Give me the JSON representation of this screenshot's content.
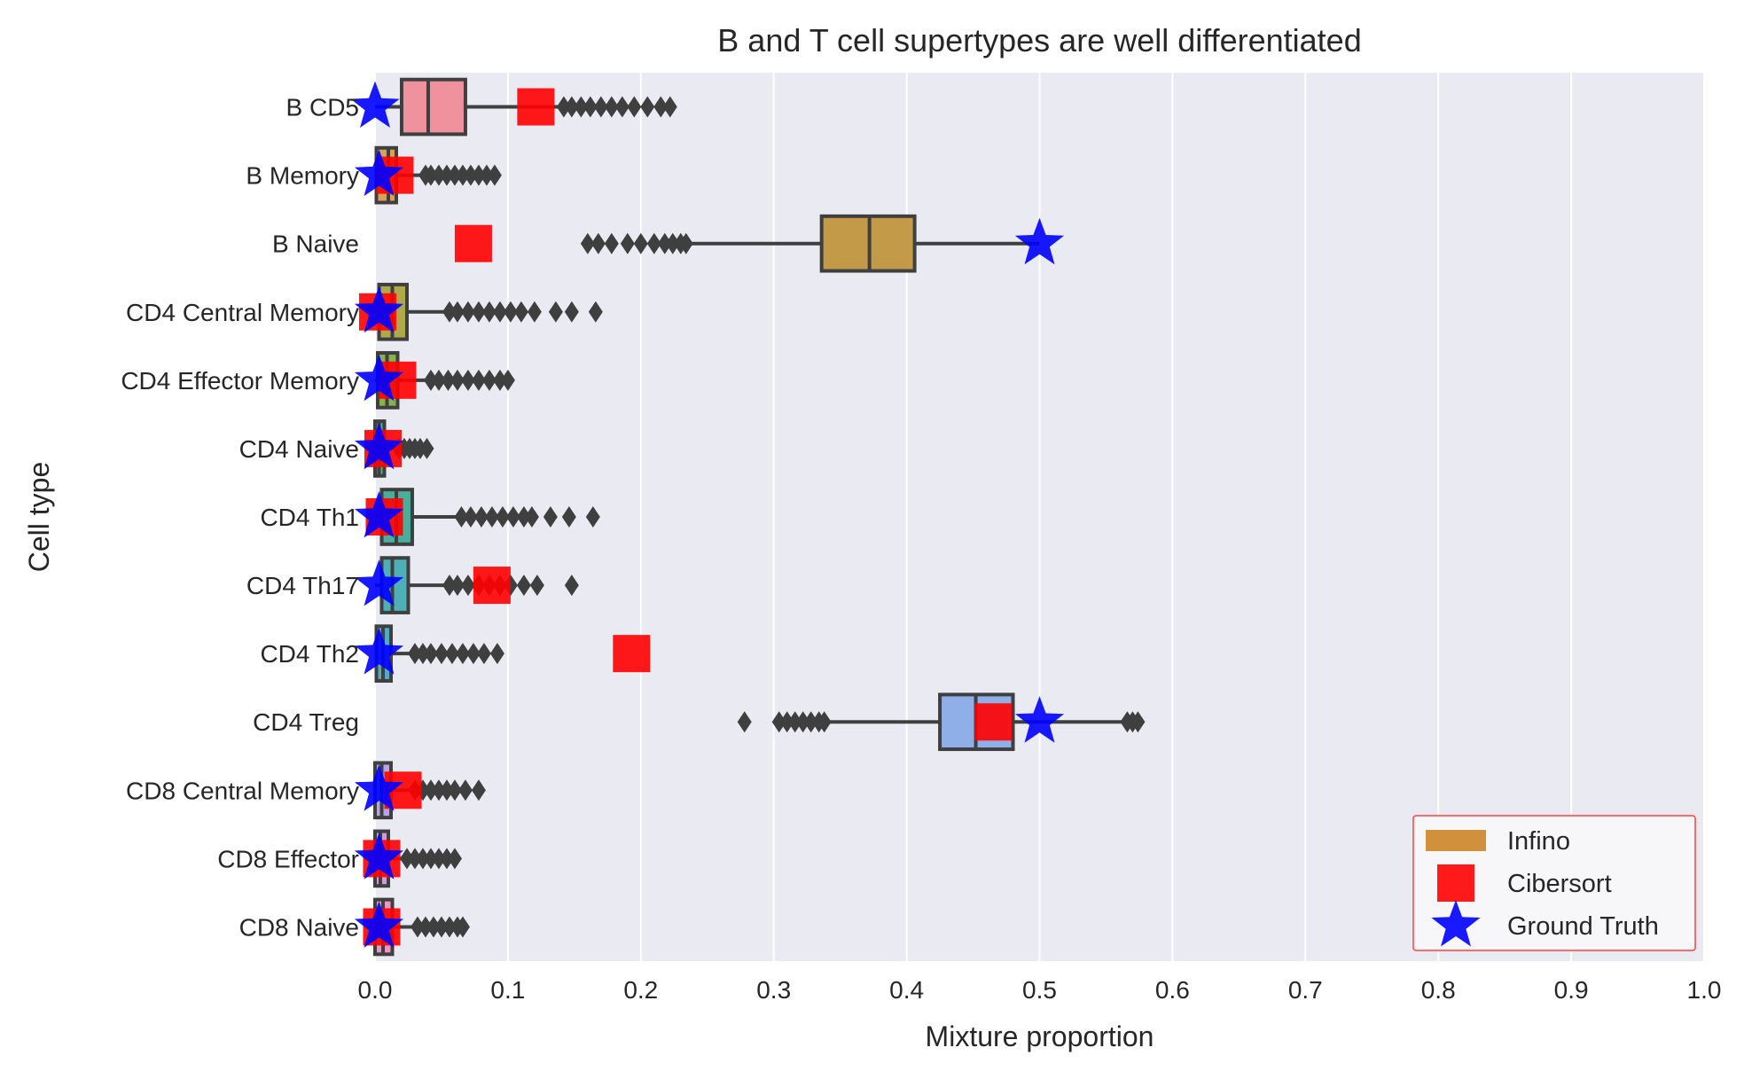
{
  "chart_data": {
    "type": "boxplot",
    "title": "B and T cell supertypes are well differentiated",
    "xlabel": "Mixture proportion",
    "ylabel": "Cell type",
    "xlim": [
      0.0,
      1.0
    ],
    "xticks": [
      "0.0",
      "0.1",
      "0.2",
      "0.3",
      "0.4",
      "0.5",
      "0.6",
      "0.7",
      "0.8",
      "0.9",
      "1.0"
    ],
    "grid": true,
    "legend_position": "bottom-right",
    "legend": [
      {
        "label": "Infino",
        "marker": "patch",
        "color": "#d1913c"
      },
      {
        "label": "Cibersort",
        "marker": "square",
        "color": "#ff0000"
      },
      {
        "label": "Ground Truth",
        "marker": "star",
        "color": "#0000ff"
      }
    ],
    "categories": [
      "B CD5",
      "B Memory",
      "B Naive",
      "CD4 Central Memory",
      "CD4 Effector Memory",
      "CD4 Naive",
      "CD4 Th1",
      "CD4 Th17",
      "CD4 Th2",
      "CD4 Treg",
      "CD8 Central Memory",
      "CD8 Effector",
      "CD8 Naive"
    ],
    "colors": {
      "background": "#eaeaf2",
      "grid": "#ffffff",
      "box_edge": "#3f3f3f",
      "cibersort": "#ff0000",
      "ground_truth": "#0000ff"
    },
    "series": [
      {
        "name": "Infino",
        "boxes": [
          {
            "color": "#f0929e",
            "q1": 0.02,
            "median": 0.04,
            "q3": 0.068,
            "whislo": 0.0,
            "whishi": 0.138,
            "fliers": [
              0.142,
              0.148,
              0.155,
              0.162,
              0.17,
              0.178,
              0.186,
              0.195,
              0.205,
              0.215,
              0.222
            ]
          },
          {
            "color": "#d9a257",
            "q1": 0.001,
            "median": 0.01,
            "q3": 0.016,
            "whislo": 0.0,
            "whishi": 0.036,
            "fliers": [
              0.038,
              0.042,
              0.048,
              0.054,
              0.06,
              0.066,
              0.072,
              0.078,
              0.084,
              0.09
            ]
          },
          {
            "color": "#c39a47",
            "q1": 0.336,
            "median": 0.372,
            "q3": 0.406,
            "whislo": 0.236,
            "whishi": 0.5,
            "fliers": [
              0.16,
              0.168,
              0.178,
              0.19,
              0.2,
              0.21,
              0.218,
              0.224,
              0.23,
              0.234
            ]
          },
          {
            "color": "#aeaa4a",
            "q1": 0.003,
            "median": 0.013,
            "q3": 0.024,
            "whislo": 0.0,
            "whishi": 0.054,
            "fliers": [
              0.056,
              0.062,
              0.07,
              0.078,
              0.086,
              0.094,
              0.102,
              0.11,
              0.12,
              0.136,
              0.148,
              0.166
            ]
          },
          {
            "color": "#87b14a",
            "q1": 0.002,
            "median": 0.009,
            "q3": 0.017,
            "whislo": 0.0,
            "whishi": 0.04,
            "fliers": [
              0.042,
              0.048,
              0.055,
              0.062,
              0.07,
              0.078,
              0.086,
              0.094,
              0.1
            ]
          },
          {
            "color": "#4cb273",
            "q1": 0.0,
            "median": 0.003,
            "q3": 0.007,
            "whislo": 0.0,
            "whishi": 0.016,
            "fliers": [
              0.018,
              0.022,
              0.026,
              0.03,
              0.034,
              0.039
            ]
          },
          {
            "color": "#4bae9b",
            "q1": 0.005,
            "median": 0.016,
            "q3": 0.028,
            "whislo": 0.0,
            "whishi": 0.062,
            "fliers": [
              0.065,
              0.072,
              0.08,
              0.088,
              0.096,
              0.104,
              0.112,
              0.118,
              0.132,
              0.146,
              0.164
            ]
          },
          {
            "color": "#4db0b6",
            "q1": 0.005,
            "median": 0.013,
            "q3": 0.025,
            "whislo": 0.0,
            "whishi": 0.054,
            "fliers": [
              0.056,
              0.062,
              0.07,
              0.078,
              0.086,
              0.094,
              0.102,
              0.112,
              0.122,
              0.148
            ]
          },
          {
            "color": "#54a9c9",
            "q1": 0.001,
            "median": 0.006,
            "q3": 0.012,
            "whislo": 0.0,
            "whishi": 0.028,
            "fliers": [
              0.03,
              0.036,
              0.042,
              0.05,
              0.058,
              0.066,
              0.074,
              0.082,
              0.092
            ]
          },
          {
            "color": "#8fafe9",
            "q1": 0.425,
            "median": 0.452,
            "q3": 0.48,
            "whislo": 0.342,
            "whishi": 0.562,
            "fliers": [
              0.278,
              0.304,
              0.31,
              0.316,
              0.322,
              0.328,
              0.334,
              0.338,
              0.566,
              0.57,
              0.574
            ]
          },
          {
            "color": "#b7a3e6",
            "q1": 0.0,
            "median": 0.005,
            "q3": 0.012,
            "whislo": 0.0,
            "whishi": 0.028,
            "fliers": [
              0.03,
              0.036,
              0.042,
              0.048,
              0.054,
              0.06,
              0.068,
              0.078
            ]
          },
          {
            "color": "#d896e2",
            "q1": 0.0,
            "median": 0.004,
            "q3": 0.01,
            "whislo": 0.0,
            "whishi": 0.022,
            "fliers": [
              0.024,
              0.03,
              0.036,
              0.042,
              0.048,
              0.054,
              0.06
            ]
          },
          {
            "color": "#ec95c4",
            "q1": 0.0,
            "median": 0.006,
            "q3": 0.013,
            "whislo": 0.0,
            "whishi": 0.03,
            "fliers": [
              0.032,
              0.038,
              0.044,
              0.05,
              0.056,
              0.062,
              0.066
            ]
          }
        ]
      },
      {
        "name": "Cibersort",
        "values": [
          0.121,
          0.015,
          0.074,
          0.002,
          0.017,
          0.006,
          0.007,
          0.088,
          0.193,
          0.465,
          0.021,
          0.005,
          0.005
        ]
      },
      {
        "name": "Ground Truth",
        "values": [
          0.0,
          0.003,
          0.5,
          0.003,
          0.003,
          0.003,
          0.003,
          0.003,
          0.003,
          0.5,
          0.003,
          0.003,
          0.003
        ]
      }
    ]
  }
}
